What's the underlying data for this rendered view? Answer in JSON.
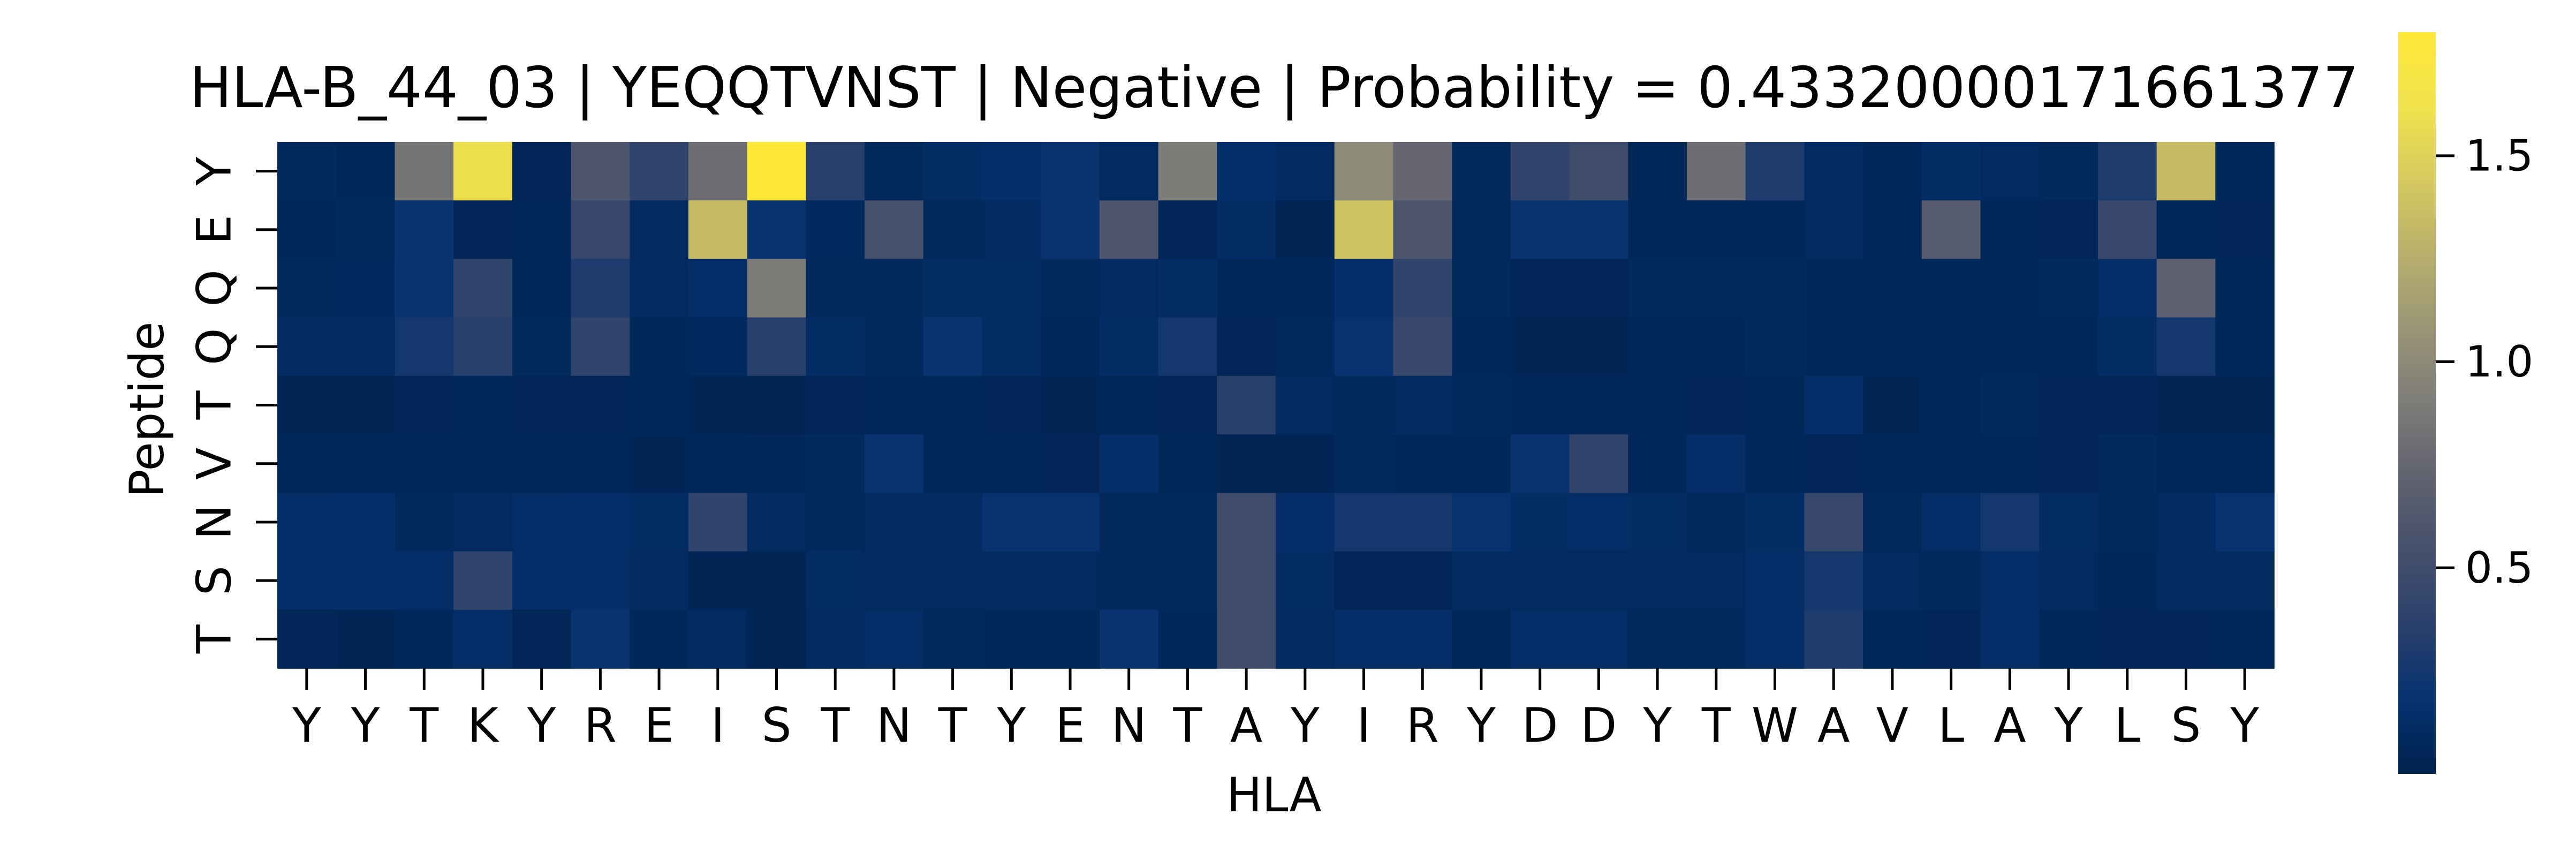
{
  "chart_data": {
    "type": "heatmap",
    "title": "HLA-B_44_03 | YEQQTVNST | Negative | Probability = 0.43320000171661377",
    "xlabel": "HLA",
    "ylabel": "Peptide",
    "x_categories": [
      "Y",
      "Y",
      "T",
      "K",
      "Y",
      "R",
      "E",
      "I",
      "S",
      "T",
      "N",
      "T",
      "Y",
      "E",
      "N",
      "T",
      "A",
      "Y",
      "I",
      "R",
      "Y",
      "D",
      "D",
      "Y",
      "T",
      "W",
      "A",
      "V",
      "L",
      "A",
      "Y",
      "L",
      "S",
      "Y"
    ],
    "y_categories": [
      "Y",
      "E",
      "Q",
      "Q",
      "T",
      "V",
      "N",
      "S",
      "T"
    ],
    "colormap": "cividis",
    "vmin": 0.0,
    "vmax": 1.8,
    "colorbar_ticks": [
      0.5,
      1.0,
      1.5
    ],
    "colorbar_tick_labels": [
      "0.5",
      "1.0",
      "1.5"
    ],
    "grid": false,
    "values": [
      [
        0.08,
        0.07,
        0.85,
        1.6,
        0.05,
        0.6,
        0.4,
        0.8,
        1.8,
        0.35,
        0.08,
        0.12,
        0.15,
        0.2,
        0.1,
        0.9,
        0.15,
        0.1,
        1.0,
        0.75,
        0.08,
        0.4,
        0.5,
        0.06,
        0.8,
        0.3,
        0.1,
        0.07,
        0.12,
        0.1,
        0.08,
        0.3,
        1.35,
        0.06
      ],
      [
        0.07,
        0.08,
        0.2,
        0.05,
        0.07,
        0.45,
        0.1,
        1.35,
        0.18,
        0.09,
        0.55,
        0.08,
        0.1,
        0.2,
        0.6,
        0.05,
        0.12,
        0.03,
        1.4,
        0.6,
        0.08,
        0.2,
        0.2,
        0.06,
        0.07,
        0.06,
        0.1,
        0.07,
        0.65,
        0.07,
        0.05,
        0.45,
        0.07,
        0.05
      ],
      [
        0.08,
        0.09,
        0.2,
        0.4,
        0.07,
        0.3,
        0.1,
        0.14,
        0.9,
        0.08,
        0.08,
        0.12,
        0.12,
        0.08,
        0.1,
        0.12,
        0.06,
        0.07,
        0.15,
        0.4,
        0.08,
        0.05,
        0.05,
        0.08,
        0.08,
        0.08,
        0.07,
        0.06,
        0.07,
        0.07,
        0.08,
        0.14,
        0.7,
        0.06
      ],
      [
        0.1,
        0.1,
        0.25,
        0.35,
        0.08,
        0.4,
        0.07,
        0.09,
        0.35,
        0.12,
        0.08,
        0.2,
        0.12,
        0.07,
        0.12,
        0.25,
        0.05,
        0.08,
        0.18,
        0.45,
        0.07,
        0.03,
        0.03,
        0.07,
        0.07,
        0.08,
        0.06,
        0.06,
        0.07,
        0.06,
        0.07,
        0.12,
        0.25,
        0.06
      ],
      [
        0.04,
        0.04,
        0.05,
        0.06,
        0.05,
        0.05,
        0.06,
        0.04,
        0.02,
        0.05,
        0.07,
        0.07,
        0.05,
        0.04,
        0.06,
        0.05,
        0.35,
        0.1,
        0.08,
        0.1,
        0.08,
        0.07,
        0.07,
        0.07,
        0.05,
        0.06,
        0.14,
        0.04,
        0.06,
        0.08,
        0.05,
        0.05,
        0.03,
        0.04
      ],
      [
        0.06,
        0.07,
        0.07,
        0.07,
        0.06,
        0.07,
        0.04,
        0.06,
        0.06,
        0.08,
        0.2,
        0.07,
        0.06,
        0.05,
        0.15,
        0.06,
        0.03,
        0.03,
        0.08,
        0.06,
        0.07,
        0.2,
        0.4,
        0.07,
        0.14,
        0.07,
        0.05,
        0.06,
        0.06,
        0.06,
        0.05,
        0.08,
        0.06,
        0.06
      ],
      [
        0.14,
        0.15,
        0.08,
        0.1,
        0.14,
        0.14,
        0.12,
        0.4,
        0.1,
        0.08,
        0.1,
        0.1,
        0.18,
        0.18,
        0.08,
        0.08,
        0.5,
        0.14,
        0.25,
        0.25,
        0.18,
        0.12,
        0.14,
        0.12,
        0.08,
        0.12,
        0.45,
        0.08,
        0.14,
        0.25,
        0.12,
        0.08,
        0.1,
        0.18
      ],
      [
        0.14,
        0.14,
        0.14,
        0.4,
        0.14,
        0.14,
        0.1,
        0.04,
        0.04,
        0.12,
        0.1,
        0.1,
        0.1,
        0.1,
        0.08,
        0.08,
        0.5,
        0.12,
        0.05,
        0.05,
        0.1,
        0.1,
        0.1,
        0.1,
        0.1,
        0.14,
        0.25,
        0.1,
        0.08,
        0.14,
        0.1,
        0.06,
        0.1,
        0.1
      ],
      [
        0.05,
        0.04,
        0.07,
        0.14,
        0.05,
        0.2,
        0.07,
        0.1,
        0.04,
        0.1,
        0.14,
        0.08,
        0.06,
        0.06,
        0.2,
        0.07,
        0.5,
        0.1,
        0.14,
        0.14,
        0.06,
        0.14,
        0.14,
        0.08,
        0.08,
        0.14,
        0.3,
        0.06,
        0.05,
        0.14,
        0.07,
        0.05,
        0.05,
        0.07
      ]
    ]
  }
}
